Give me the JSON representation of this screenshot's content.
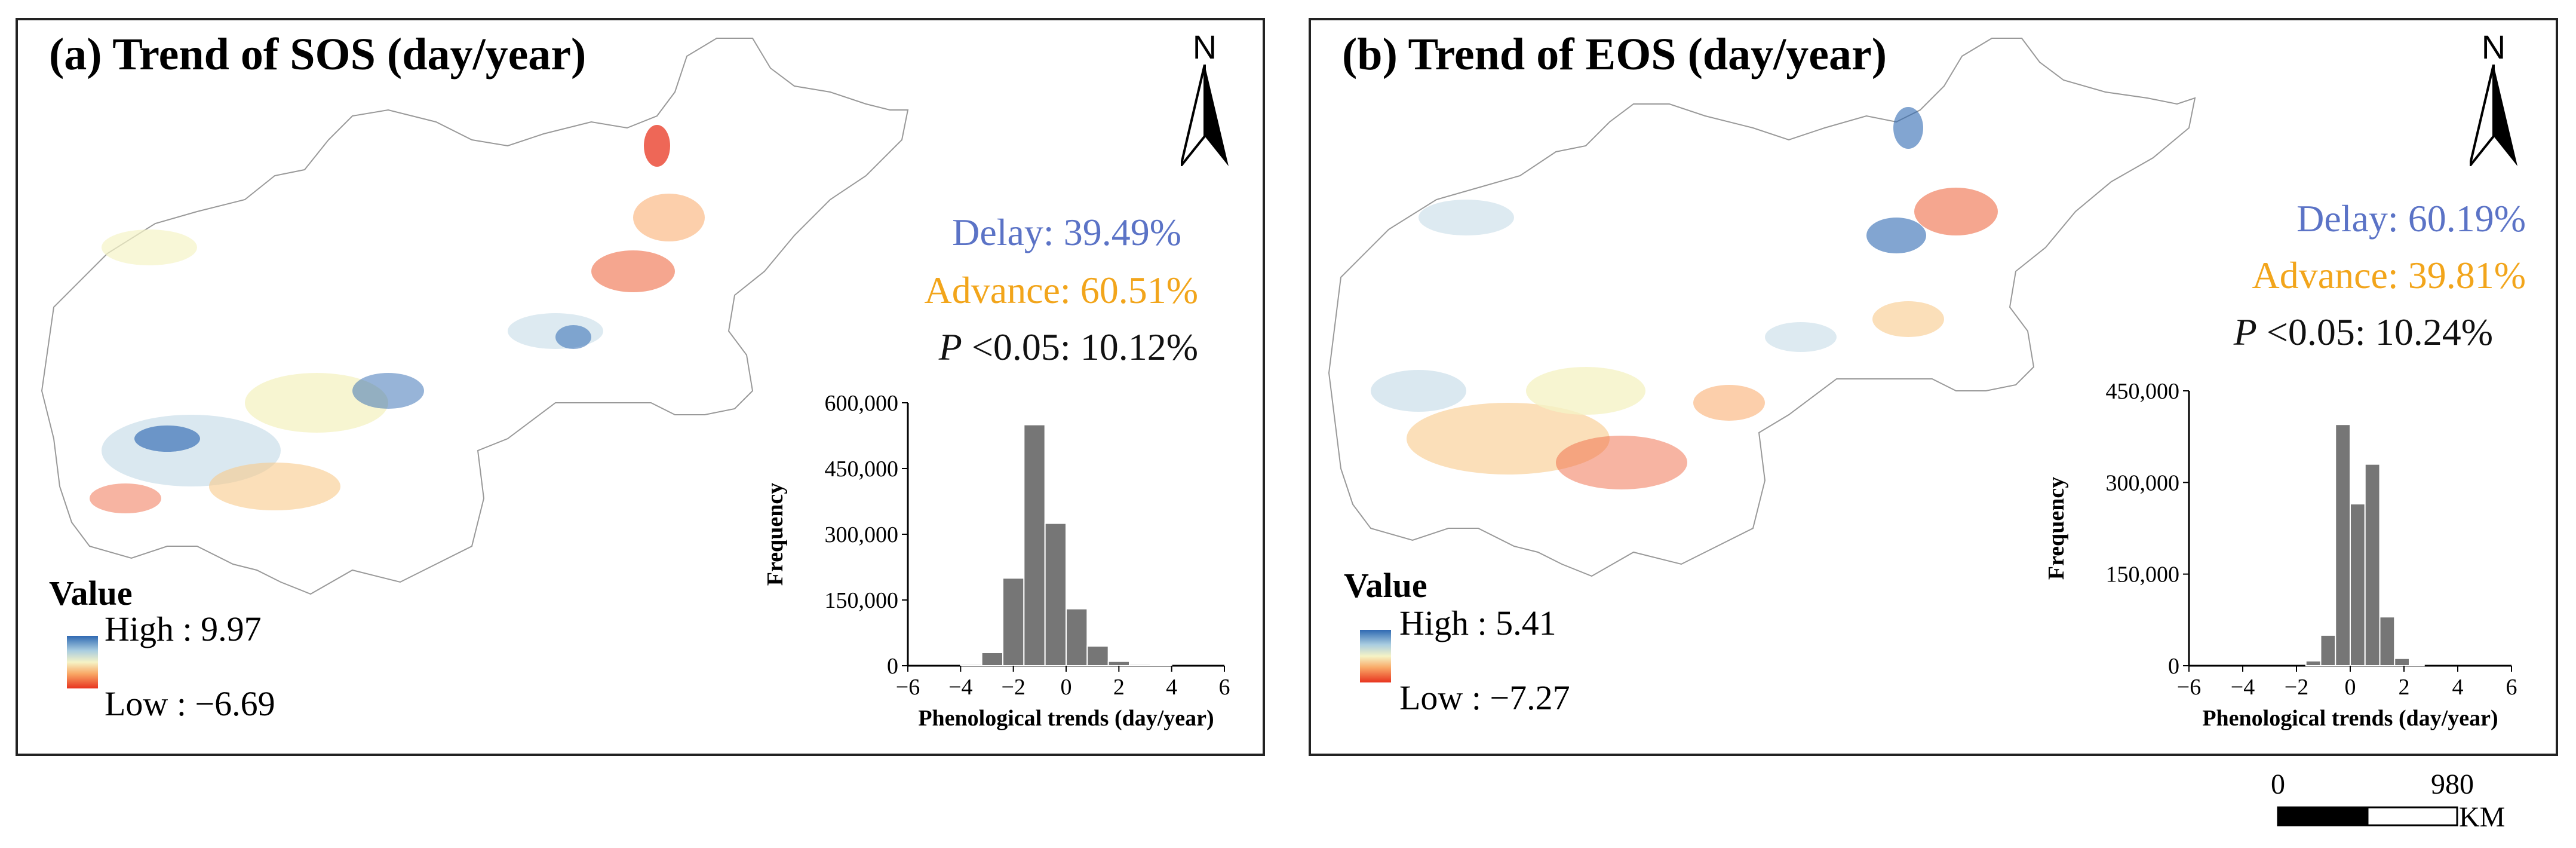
{
  "panels": [
    {
      "id": "a",
      "title": "(a) Trend of SOS (day/year)",
      "north_label": "N",
      "stats": {
        "delay": "Delay: 39.49%",
        "advance": "Advance: 60.51%",
        "p_prefix": "P",
        "p_rest": "<0.05: 10.12%"
      },
      "legend": {
        "title": "Value",
        "high": "High : 9.97",
        "low": "Low : −6.69"
      },
      "colors": {
        "delay": "#5b73c6",
        "advance": "#f2a51b"
      }
    },
    {
      "id": "b",
      "title": "(b) Trend of EOS (day/year)",
      "north_label": "N",
      "stats": {
        "delay": "Delay: 60.19%",
        "advance": "Advance: 39.81%",
        "p_prefix": "P",
        "p_rest": "<0.05: 10.24%"
      },
      "legend": {
        "title": "Value",
        "high": "High : 5.41",
        "low": "Low : −7.27"
      },
      "colors": {
        "delay": "#5b73c6",
        "advance": "#f2a51b"
      }
    }
  ],
  "scale_bar": {
    "start": "0",
    "end": "980",
    "unit": "KM"
  },
  "chart_data": [
    {
      "type": "bar",
      "panel": "a",
      "title": "",
      "xlabel": "Phenological trends (day/year)",
      "ylabel": "Frequency",
      "xlim": [
        -6,
        6
      ],
      "ylim": [
        0,
        600000
      ],
      "x_ticks": [
        -6,
        -4,
        -2,
        0,
        2,
        4,
        6
      ],
      "y_ticks": [
        0,
        150000,
        300000,
        450000,
        600000
      ],
      "y_tick_labels": [
        "0",
        "150,000",
        "300,000",
        "450,000",
        "600,000"
      ],
      "bin_width": 0.8,
      "bin_centers": [
        -3.6,
        -2.8,
        -2.0,
        -1.2,
        -0.4,
        0.4,
        1.2,
        2.0,
        2.8,
        3.6
      ],
      "values": [
        3000,
        30000,
        200000,
        550000,
        325000,
        130000,
        45000,
        10000,
        3000,
        1000
      ]
    },
    {
      "type": "bar",
      "panel": "b",
      "title": "",
      "xlabel": "Phenological trends (day/year)",
      "ylabel": "Frequency",
      "xlim": [
        -6,
        6
      ],
      "ylim": [
        0,
        450000
      ],
      "x_ticks": [
        -6,
        -4,
        -2,
        0,
        2,
        4,
        6
      ],
      "y_ticks": [
        0,
        150000,
        300000,
        450000
      ],
      "y_tick_labels": [
        "0",
        "150,000",
        "300,000",
        "450,000"
      ],
      "bin_width": 0.55,
      "bin_centers": [
        -1.375,
        -0.825,
        -0.275,
        0.275,
        0.825,
        1.375,
        1.925,
        2.475
      ],
      "values": [
        8000,
        50000,
        395000,
        265000,
        330000,
        80000,
        12000,
        2000
      ]
    }
  ]
}
